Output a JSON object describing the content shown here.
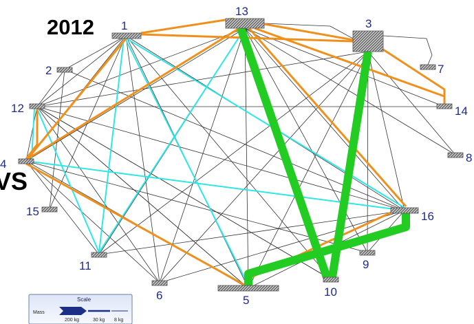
{
  "title": "2012",
  "cut_text": "VS",
  "nodes": [
    {
      "id": "1",
      "label": "1"
    },
    {
      "id": "2",
      "label": "2"
    },
    {
      "id": "3",
      "label": "3"
    },
    {
      "id": "4",
      "label": "4"
    },
    {
      "id": "5",
      "label": "5"
    },
    {
      "id": "6",
      "label": "6"
    },
    {
      "id": "7",
      "label": "7"
    },
    {
      "id": "8",
      "label": "8"
    },
    {
      "id": "9",
      "label": "9"
    },
    {
      "id": "10",
      "label": "10"
    },
    {
      "id": "11",
      "label": "11"
    },
    {
      "id": "12",
      "label": "12"
    },
    {
      "id": "13",
      "label": "13"
    },
    {
      "id": "14",
      "label": "14"
    },
    {
      "id": "15",
      "label": "15"
    },
    {
      "id": "16",
      "label": "16"
    }
  ],
  "edge_colors": {
    "light": "#333333",
    "cyan": "#2ee6e6",
    "orange": "#f0901c",
    "green": "#22cc22"
  },
  "scale": {
    "title": "Scale",
    "measure": "Mass",
    "levels": [
      "200 kg",
      "30 kg",
      "8 kg"
    ]
  }
}
